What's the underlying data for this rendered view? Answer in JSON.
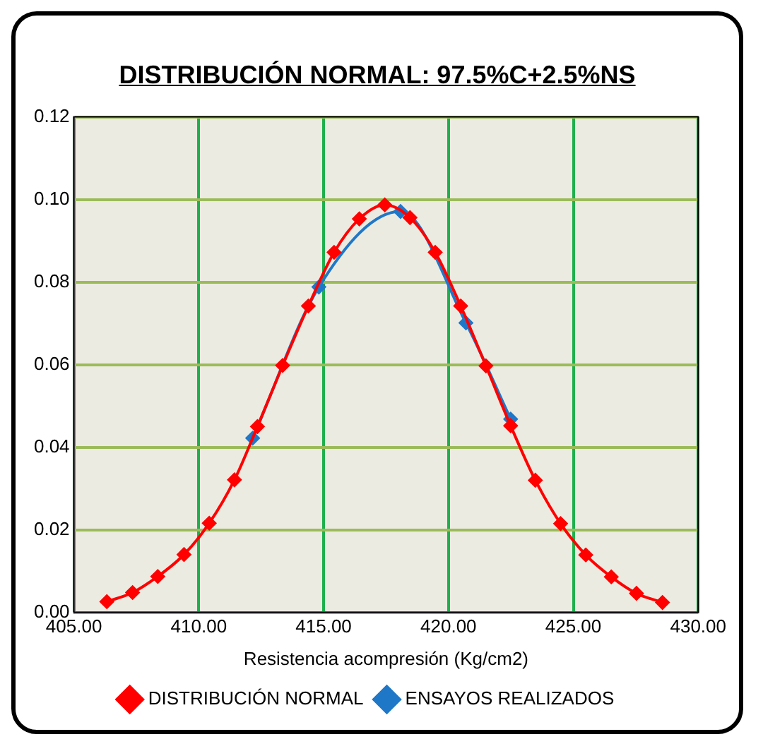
{
  "chart_data": {
    "type": "line",
    "title": "DISTRIBUCIÓN  NORMAL: 97.5%C+2.5%NS",
    "xlabel": "Resistencia acompresión (Kg/cm2)",
    "series": [
      {
        "name": "DISTRIBUCIÓN NORMAL",
        "color": "#ff0000",
        "x": [
          406.32,
          407.35,
          408.36,
          409.41,
          410.42,
          411.43,
          412.35,
          413.36,
          414.39,
          415.42,
          416.43,
          417.45,
          418.46,
          419.47,
          420.49,
          421.5,
          422.49,
          423.48,
          424.49,
          425.5,
          426.52,
          427.53,
          428.57
        ],
        "values": [
          0.0026,
          0.0048,
          0.0087,
          0.014,
          0.0216,
          0.0321,
          0.045,
          0.0598,
          0.0742,
          0.0872,
          0.0953,
          0.0987,
          0.0956,
          0.0872,
          0.0742,
          0.0597,
          0.0452,
          0.032,
          0.0215,
          0.0139,
          0.0086,
          0.0046,
          0.0024
        ]
      },
      {
        "name": "ENSAYOS REALIZADOS",
        "color": "#1f77c8",
        "x": [
          412.16,
          414.81,
          418.08,
          420.7,
          422.49
        ],
        "values": [
          0.0422,
          0.0788,
          0.0971,
          0.0701,
          0.0468
        ]
      }
    ],
    "xlim": [
      405,
      430
    ],
    "xticks": [
      {
        "value": 405,
        "label": "405.00"
      },
      {
        "value": 410,
        "label": "410.00"
      },
      {
        "value": 415,
        "label": "415.00"
      },
      {
        "value": 420,
        "label": "420.00"
      },
      {
        "value": 425,
        "label": "425.00"
      },
      {
        "value": 430,
        "label": "430.00"
      }
    ],
    "ylim": [
      0,
      0.12
    ],
    "yticks": [
      {
        "value": 0,
        "label": "0.00"
      },
      {
        "value": 0.02,
        "label": "0.02"
      },
      {
        "value": 0.04,
        "label": "0.04"
      },
      {
        "value": 0.06,
        "label": "0.06"
      },
      {
        "value": 0.08,
        "label": "0.08"
      },
      {
        "value": 0.1,
        "label": "0.10"
      },
      {
        "value": 0.12,
        "label": "0.12"
      }
    ],
    "grid": true,
    "legend": "bottom",
    "marker": "diamond",
    "line_style": "solid"
  }
}
